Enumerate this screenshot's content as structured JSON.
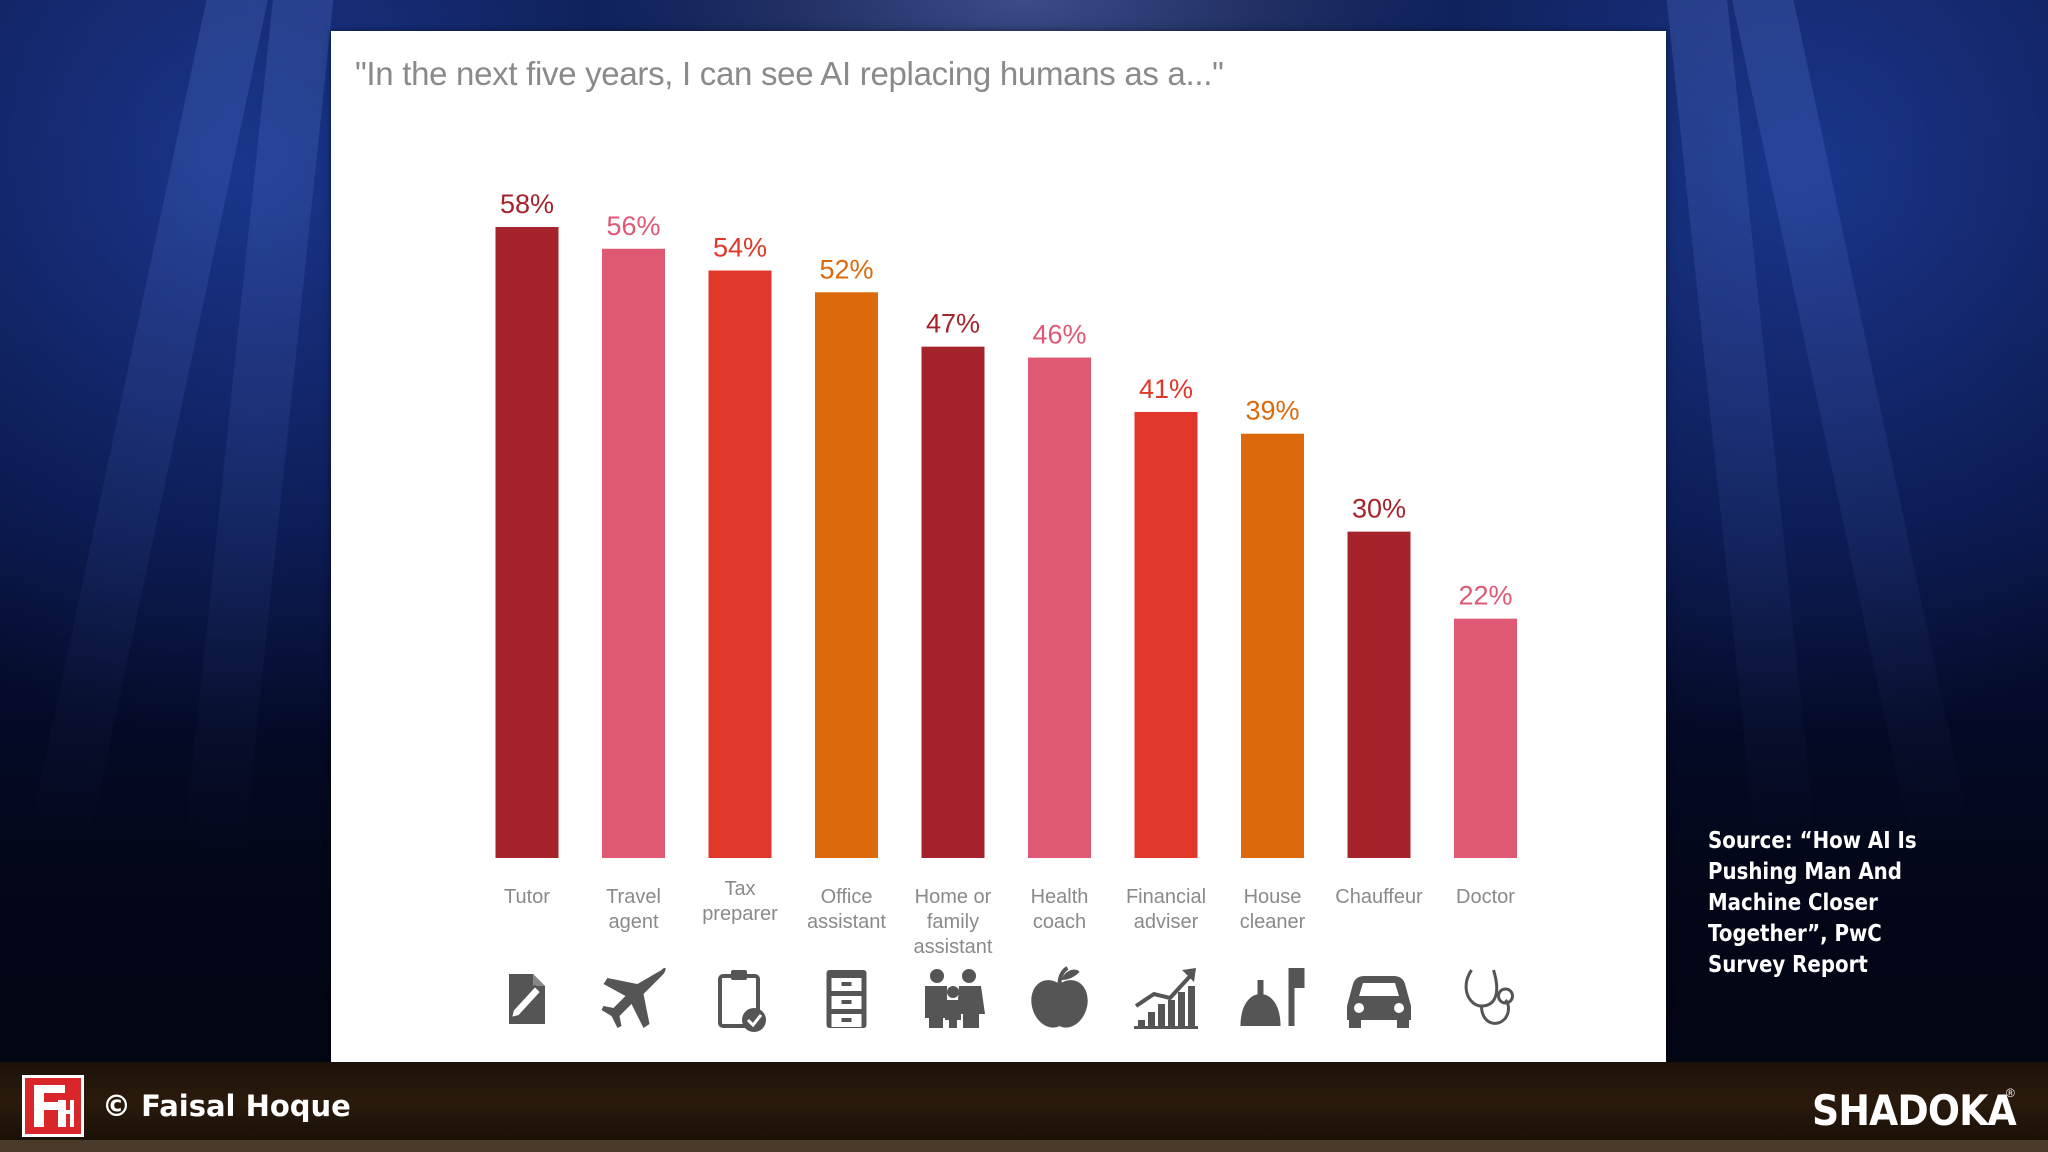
{
  "slide": {
    "title": "\"In the next five years, I can see AI replacing humans as a...\""
  },
  "chart_data": {
    "type": "bar",
    "title": "\"In the next five years, I can see AI replacing humans as a...\"",
    "categories": [
      [
        "Tutor"
      ],
      [
        "Travel",
        "agent"
      ],
      [
        "Tax",
        "preparer"
      ],
      [
        "Office",
        "assistant"
      ],
      [
        "Home or",
        "family",
        "assistant"
      ],
      [
        "Health",
        "coach"
      ],
      [
        "Financial",
        "adviser"
      ],
      [
        "House",
        "cleaner"
      ],
      [
        "Chauffeur"
      ],
      [
        "Doctor"
      ]
    ],
    "values": [
      58,
      56,
      54,
      52,
      47,
      46,
      41,
      39,
      30,
      22
    ],
    "value_labels": [
      "58%",
      "56%",
      "54%",
      "52%",
      "47%",
      "46%",
      "41%",
      "39%",
      "30%",
      "22%"
    ],
    "bar_colors": [
      "#a5242b",
      "#df5874",
      "#e0372a",
      "#dc6a0c",
      "#a5242b",
      "#df5874",
      "#e0372a",
      "#dc6a0c",
      "#a5242b",
      "#df5874"
    ],
    "label_colors": [
      "#a5242b",
      "#df5874",
      "#e0372a",
      "#dc6a0c",
      "#a5242b",
      "#df5874",
      "#e0372a",
      "#dc6a0c",
      "#a5242b",
      "#df5874"
    ],
    "icons": [
      "pencil-document-icon",
      "airplane-icon",
      "clipboard-check-icon",
      "filing-cabinet-icon",
      "family-icon",
      "apple-icon",
      "growth-chart-icon",
      "cleaning-bell-icon",
      "car-icon",
      "stethoscope-icon"
    ],
    "ylim": [
      0,
      60
    ],
    "grid": false,
    "legend": "none",
    "xlabel": "",
    "ylabel": ""
  },
  "source": {
    "lines": [
      "Source: “How AI Is",
      "Pushing Man And",
      "Machine Closer",
      "Together”, PwC",
      "Survey Report"
    ]
  },
  "footer": {
    "logo_text": "FH",
    "copyright": "© Faisal Hoque",
    "brand": "SHADOKA"
  },
  "colors": {
    "icon": "#555555",
    "category_text": "#8a8a8a",
    "title_text": "#8a8a8a"
  }
}
